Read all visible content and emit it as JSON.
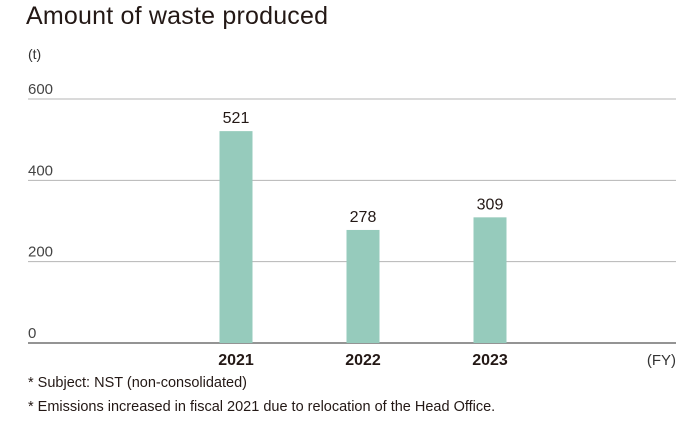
{
  "chart_data": {
    "type": "bar",
    "title": "Amount of waste produced",
    "ylabel": "(t)",
    "xlabel": "(FY)",
    "categories": [
      "2021",
      "2022",
      "2023"
    ],
    "values": [
      521,
      278,
      309
    ],
    "ylim": [
      0,
      600
    ],
    "yticks": [
      0,
      200,
      400,
      600
    ],
    "grid": true,
    "bar_color": "#96cbbc",
    "notes": [
      "* Subject: NST (non-consolidated)",
      "* Emissions increased in fiscal 2021 due to relocation of the Head Office."
    ]
  }
}
